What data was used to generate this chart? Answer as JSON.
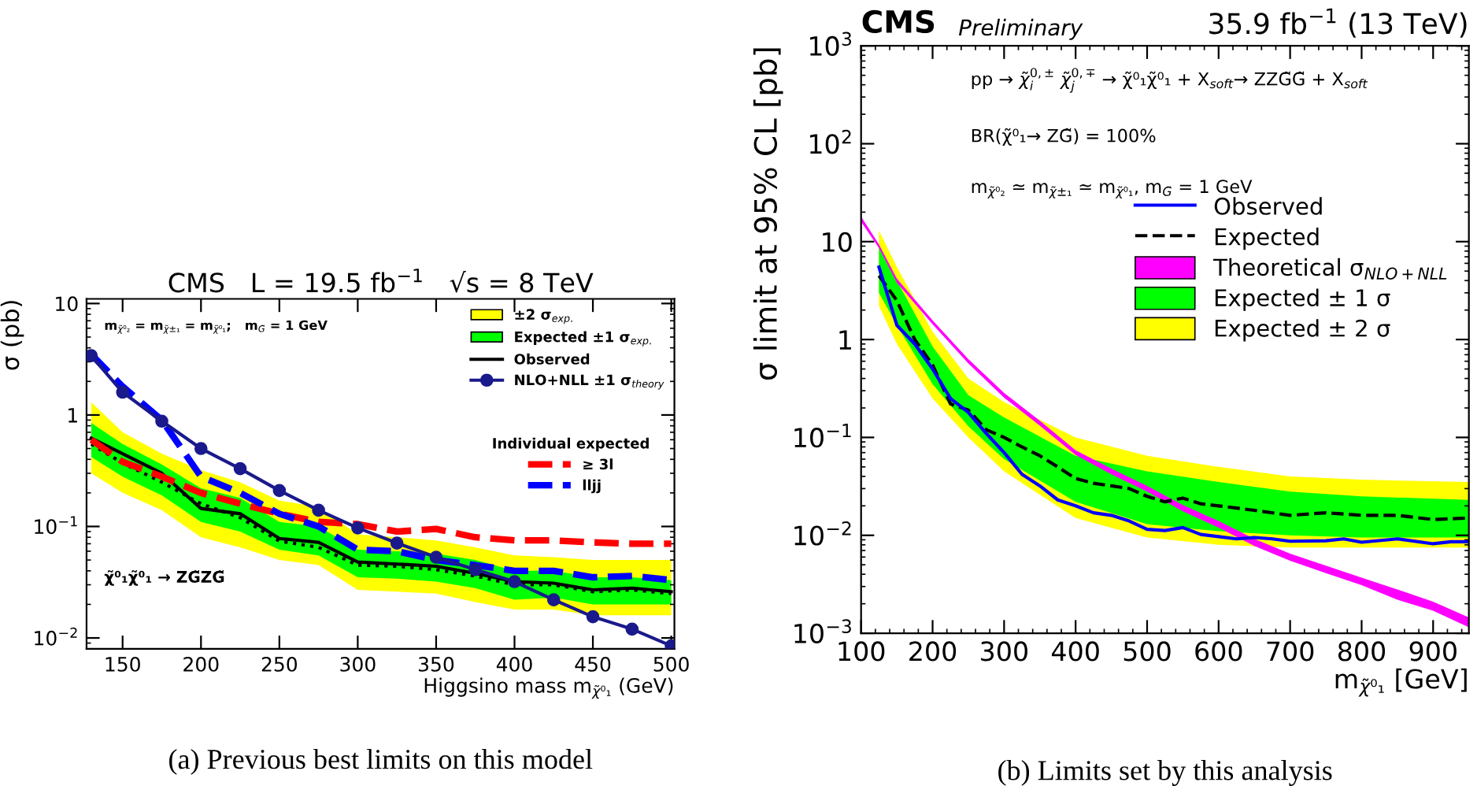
{
  "chart_data": [
    {
      "type": "line",
      "title": "CMS   L = 19.5 fb$^{−1}$   √s = 8 TeV",
      "xlabel": "Higgsino mass m$_{χ̃⁰₁}$ (GeV)",
      "ylabel": "σ (pb)",
      "legend_title": "Individual expected",
      "log": "y",
      "xlim": [
        127,
        502
      ],
      "ylim": [
        0.008,
        11
      ],
      "xticks": [
        150,
        200,
        250,
        300,
        350,
        400,
        450,
        500
      ],
      "yticks": [
        {
          "value": 0.01,
          "label": "10$^{−2}$"
        },
        {
          "value": 0.1,
          "label": "10$^{−1}$"
        },
        1,
        10
      ],
      "legend": "top right",
      "x": [
        130,
        150,
        175,
        200,
        225,
        250,
        275,
        300,
        325,
        350,
        375,
        400,
        425,
        450,
        475,
        500
      ],
      "series": [
        {
          "type": "area",
          "name": "±2 σ$_{exp.}$",
          "color": "#ffff00",
          "values": [
            null,
            null,
            null,
            null,
            null,
            null,
            null,
            null,
            null,
            null,
            null,
            null,
            null,
            null,
            null,
            null
          ],
          "lower": [
            0.3,
            0.2,
            0.14,
            0.08,
            0.065,
            0.05,
            0.045,
            0.027,
            0.026,
            0.025,
            0.021,
            0.018,
            0.018,
            0.016,
            0.016,
            0.016
          ],
          "upper": [
            1.3,
            0.7,
            0.45,
            0.32,
            0.25,
            0.17,
            0.15,
            0.085,
            0.08,
            0.075,
            0.065,
            0.055,
            0.053,
            0.05,
            0.05,
            0.05
          ]
        },
        {
          "type": "area",
          "name": "Expected ±1 σ$_{exp.}$",
          "color": "#00ff00",
          "values": [
            null,
            null,
            null,
            null,
            null,
            null,
            null,
            null,
            null,
            null,
            null,
            null,
            null,
            null,
            null,
            null
          ],
          "lower": [
            0.42,
            0.28,
            0.19,
            0.11,
            0.09,
            0.062,
            0.055,
            0.035,
            0.034,
            0.032,
            0.028,
            0.022,
            0.023,
            0.02,
            0.02,
            0.02
          ],
          "upper": [
            0.85,
            0.55,
            0.36,
            0.22,
            0.18,
            0.11,
            0.1,
            0.062,
            0.06,
            0.057,
            0.05,
            0.04,
            0.04,
            0.035,
            0.035,
            0.033
          ]
        },
        {
          "color": "#000000",
          "line_style": "dotted",
          "values": [
            0.55,
            0.37,
            0.25,
            0.16,
            0.12,
            0.074,
            0.065,
            0.045,
            0.044,
            0.041,
            0.036,
            0.03,
            0.03,
            0.026,
            0.027,
            0.025
          ]
        },
        {
          "name": "Observed",
          "color": "#000000",
          "line_style": "solid",
          "values": [
            0.62,
            0.45,
            0.3,
            0.145,
            0.13,
            0.078,
            0.072,
            0.048,
            0.046,
            0.044,
            0.038,
            0.032,
            0.031,
            0.027,
            0.028,
            0.026
          ]
        },
        {
          "name": "NLO+NLL ±1 σ$_{theory}$",
          "color": "#1a1a8c",
          "line_style": "solid",
          "marker": "circle",
          "values": [
            3.4,
            1.6,
            0.88,
            0.5,
            0.33,
            0.21,
            0.14,
            0.097,
            0.071,
            0.053,
            0.041,
            0.032,
            0.022,
            0.0155,
            0.012,
            0.0085
          ]
        },
        {
          "name": "≥ 3l",
          "color": "#ff0000",
          "line_style": "dashed",
          "values": [
            0.6,
            0.38,
            0.28,
            0.2,
            0.16,
            0.13,
            0.11,
            0.105,
            0.09,
            0.095,
            0.08,
            0.075,
            0.075,
            0.072,
            0.07,
            0.07
          ]
        },
        {
          "name": "lljj",
          "color": "#0000ff",
          "line_style": "dashed",
          "values": [
            3.5,
            1.8,
            0.9,
            0.28,
            0.2,
            0.13,
            0.1,
            0.062,
            0.06,
            0.05,
            0.045,
            0.04,
            0.04,
            0.035,
            0.036,
            0.033
          ]
        }
      ],
      "annotations": [
        "m$_{χ̃⁰₂}$ = m$_{χ̃±₁}$ = m$_{χ̃⁰₁}$;   m$_{G̃}$ = 1 GeV",
        "χ̃⁰₁χ̃⁰₁ → ZG̃ZG̃",
        "(a) Previous best limits on this model"
      ]
    },
    {
      "type": "line",
      "title": "CMS",
      "subtitle": "Preliminary",
      "xlabel": "m$_{χ̃⁰₁}$ [GeV]",
      "ylabel": "σ limit at 95% CL [pb]",
      "log": "y",
      "xlim": [
        100,
        950
      ],
      "ylim": [
        0.001,
        1000
      ],
      "xticks": [
        100,
        200,
        300,
        400,
        500,
        600,
        700,
        800,
        900
      ],
      "yticks": [
        {
          "value": 0.001,
          "label": "10$^{−3}$"
        },
        {
          "value": 0.01,
          "label": "10$^{−2}$"
        },
        {
          "value": 0.1,
          "label": "10$^{−1}$"
        },
        1,
        10,
        {
          "value": 100,
          "label": "10$^{2}$"
        },
        {
          "value": 1000,
          "label": "10$^{3}$"
        }
      ],
      "legend": "top right",
      "series": [
        {
          "type": "area",
          "name": "Expected ± 2 σ",
          "color": "#ffff00",
          "x": [
            125,
            150,
            200,
            250,
            300,
            400,
            500,
            600,
            700,
            800,
            950
          ],
          "values": [
            null,
            null,
            null,
            null,
            null,
            null,
            null,
            null,
            null,
            null,
            null
          ],
          "lower": [
            2.2,
            0.9,
            0.25,
            0.1,
            0.045,
            0.015,
            0.0095,
            0.008,
            0.0075,
            0.0075,
            0.0075
          ],
          "upper": [
            13,
            5.5,
            1.2,
            0.4,
            0.23,
            0.1,
            0.065,
            0.05,
            0.04,
            0.037,
            0.035
          ]
        },
        {
          "type": "area",
          "name": "Expected ± 1 σ",
          "color": "#00ff00",
          "x": [
            125,
            150,
            200,
            250,
            300,
            400,
            500,
            600,
            700,
            800,
            950
          ],
          "values": [
            null,
            null,
            null,
            null,
            null,
            null,
            null,
            null,
            null,
            null,
            null
          ],
          "lower": [
            3,
            1.4,
            0.35,
            0.13,
            0.06,
            0.022,
            0.013,
            0.011,
            0.01,
            0.0095,
            0.0095
          ],
          "upper": [
            9,
            4,
            0.85,
            0.27,
            0.16,
            0.065,
            0.045,
            0.035,
            0.028,
            0.025,
            0.023
          ]
        },
        {
          "type": "area",
          "name": "Theoretical σ$_{NLO+NLL}$",
          "color": "#ff00ff",
          "x": [
            100,
            125,
            150,
            200,
            250,
            300,
            350,
            400,
            450,
            500,
            550,
            600,
            650,
            700,
            750,
            800,
            850,
            900,
            950
          ],
          "values": [
            null,
            null,
            null,
            null,
            null,
            null,
            null,
            null,
            null,
            null,
            null,
            null,
            null,
            null,
            null,
            null,
            null,
            null,
            null
          ],
          "lower": [
            16,
            8.6,
            3.8,
            1.43,
            0.57,
            0.255,
            0.132,
            0.066,
            0.042,
            0.028,
            0.0176,
            0.012,
            0.0078,
            0.0055,
            0.0041,
            0.0031,
            0.0022,
            0.0017,
            0.00115
          ],
          "upper": [
            18,
            9.4,
            4.2,
            1.57,
            0.63,
            0.285,
            0.148,
            0.074,
            0.048,
            0.032,
            0.0204,
            0.014,
            0.0092,
            0.0065,
            0.0049,
            0.0037,
            0.0028,
            0.0021,
            0.00145
          ]
        },
        {
          "name": "Expected",
          "color": "#000000",
          "line_style": "dashed",
          "x": [
            125,
            150,
            175,
            200,
            225,
            250,
            275,
            300,
            325,
            350,
            375,
            400,
            425,
            450,
            475,
            500,
            525,
            550,
            575,
            600,
            650,
            700,
            750,
            800,
            850,
            900,
            950
          ],
          "values": [
            4.5,
            2.5,
            1.0,
            0.55,
            0.22,
            0.19,
            0.12,
            0.1,
            0.08,
            0.065,
            0.05,
            0.038,
            0.034,
            0.032,
            0.03,
            0.025,
            0.022,
            0.024,
            0.021,
            0.02,
            0.018,
            0.016,
            0.017,
            0.016,
            0.016,
            0.0145,
            0.015
          ]
        },
        {
          "name": "Observed",
          "color": "#0000ff",
          "line_style": "solid",
          "x": [
            125,
            150,
            175,
            200,
            225,
            250,
            275,
            300,
            325,
            350,
            375,
            400,
            425,
            450,
            475,
            500,
            525,
            550,
            575,
            600,
            625,
            650,
            675,
            700,
            750,
            775,
            800,
            850,
            900,
            925,
            950
          ],
          "values": [
            5.5,
            1.4,
            0.9,
            0.5,
            0.25,
            0.18,
            0.11,
            0.07,
            0.042,
            0.032,
            0.023,
            0.02,
            0.017,
            0.016,
            0.014,
            0.0115,
            0.0112,
            0.012,
            0.0102,
            0.0097,
            0.0092,
            0.0095,
            0.0092,
            0.0087,
            0.0088,
            0.0092,
            0.0085,
            0.0092,
            0.0082,
            0.0086,
            0.0086
          ]
        }
      ],
      "annotations": [
        "35.9 fb$^{−1}$ (13 TeV)",
        "pp → χ̃$^{0,±}$$_{i}$ χ̃$^{0,∓}$$_{j}$ → χ̃⁰₁χ̃⁰₁ + X$_{soft}$→ ZZG̃G̃ + X$_{soft}$",
        "BR(χ̃⁰₁→ ZG̃) = 100%",
        "m$_{χ̃⁰₂}$ ≃ m$_{χ̃±₁}$ ≃ m$_{χ̃⁰₁}$, m$_{G̃}$ = 1 GeV",
        "(b) Limits set by this analysis"
      ]
    }
  ]
}
